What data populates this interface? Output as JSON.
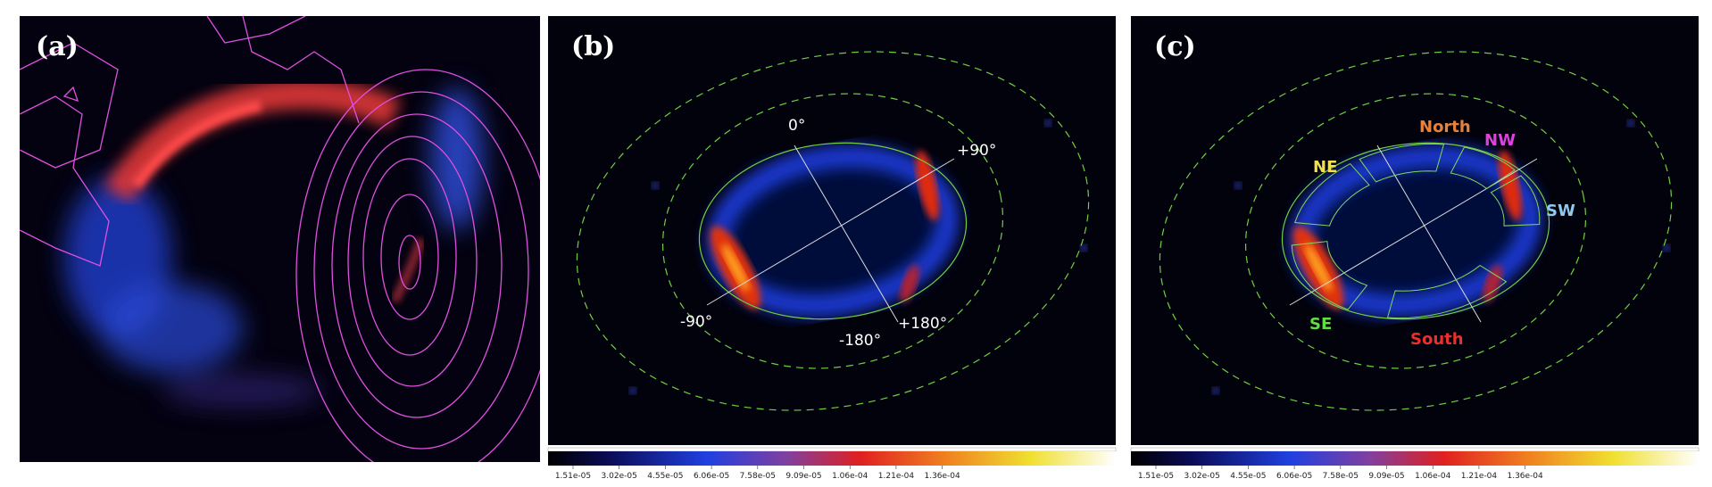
{
  "panels": [
    {
      "label": "(a)"
    },
    {
      "label": "(b)",
      "angle_labels": [
        "0°",
        "+90°",
        "-90°",
        "-180°",
        "+180°"
      ],
      "colorbar_ticks": [
        "1.51e-05",
        "3.02e-05",
        "4.55e-05",
        "6.06e-05",
        "7.58e-05",
        "9.09e-05",
        "1.06e-04",
        "1.21e-04",
        "1.36e-04"
      ]
    },
    {
      "label": "(c)",
      "regions": [
        "NE",
        "North",
        "NW",
        "SW",
        "SE",
        "South"
      ],
      "colorbar_ticks": [
        "1.51e-05",
        "3.02e-05",
        "4.55e-05",
        "6.06e-05",
        "7.58e-05",
        "9.09e-05",
        "1.06e-04",
        "1.21e-04",
        "1.36e-04"
      ]
    }
  ]
}
